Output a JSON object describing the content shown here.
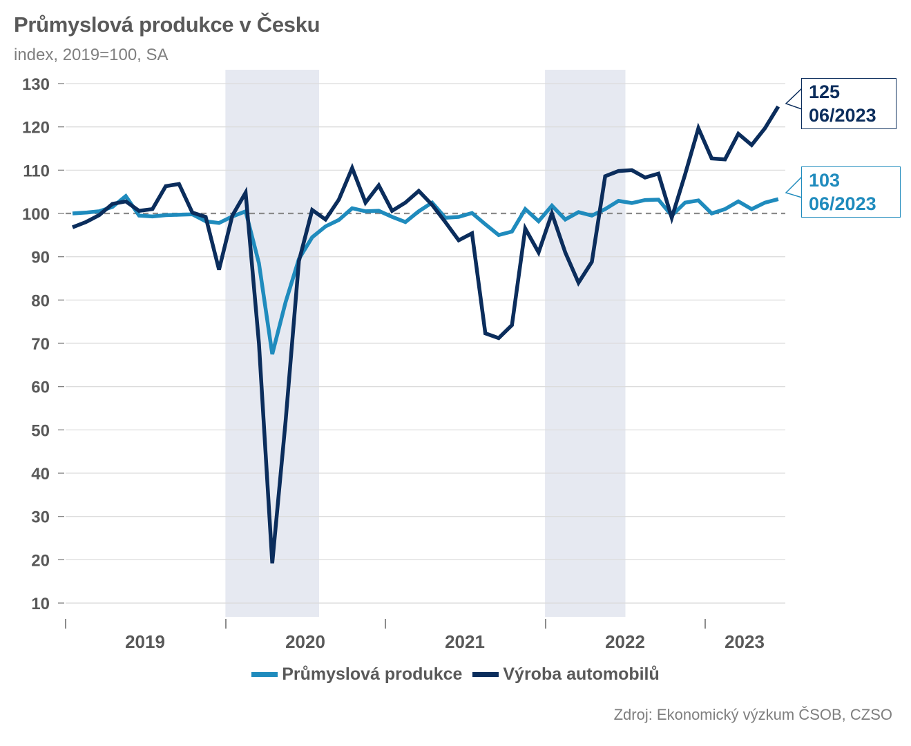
{
  "title": "Průmyslová produkce v Česku",
  "subtitle": "index, 2019=100, SA",
  "source": "Zdroj: Ekonomický výzkum ČSOB, CZSO",
  "callouts": [
    {
      "value": "125",
      "date": "06/2023",
      "color": "#0b2d5c"
    },
    {
      "value": "103",
      "date": "06/2023",
      "color": "#1f8bbd"
    }
  ],
  "legend": [
    {
      "label": "Průmyslová produkce",
      "color": "#1f8bbd"
    },
    {
      "label": "Výroba automobilů",
      "color": "#0b2d5c"
    }
  ],
  "chart_data": {
    "type": "line",
    "title": "Průmyslová produkce v Česku",
    "subtitle": "index, 2019=100, SA",
    "xlabel": "",
    "ylabel": "",
    "ylim": [
      10,
      130
    ],
    "yticks": [
      10,
      20,
      30,
      40,
      50,
      60,
      70,
      80,
      90,
      100,
      110,
      120,
      130
    ],
    "xticks": [
      "2019",
      "2020",
      "2021",
      "2022",
      "2023"
    ],
    "reference_line": 100,
    "shaded_periods": [
      {
        "from": "2020-01",
        "to": "2020-07"
      },
      {
        "from": "2022-01",
        "to": "2022-06"
      }
    ],
    "x_start": "2019-01",
    "x_end": "2023-06",
    "series": [
      {
        "name": "Průmyslová produkce",
        "color": "#1f8bbd",
        "values": [
          100.0,
          100.2,
          100.5,
          101.5,
          104.0,
          99.5,
          99.3,
          99.6,
          99.7,
          99.8,
          98.2,
          97.8,
          99.3,
          100.5,
          88.5,
          67.5,
          79.5,
          89.5,
          94.5,
          97.0,
          98.5,
          101.2,
          100.5,
          100.6,
          99.2,
          98.0,
          100.5,
          102.5,
          99.0,
          99.2,
          100.1,
          97.5,
          95.0,
          95.8,
          101.0,
          98.2,
          101.8,
          98.6,
          100.3,
          99.5,
          101.0,
          102.9,
          102.4,
          103.1,
          103.2,
          99.5,
          102.5,
          103.0,
          100.0,
          101.0,
          102.8,
          101.0,
          102.5,
          103.3
        ]
      },
      {
        "name": "Výroba automobilů",
        "color": "#0b2d5c",
        "values": [
          96.8,
          98.0,
          99.6,
          102.2,
          102.8,
          100.6,
          101.0,
          106.3,
          106.8,
          100.2,
          99.2,
          87.0,
          99.5,
          104.8,
          70.0,
          19.2,
          52.0,
          89.0,
          100.8,
          98.6,
          103.2,
          110.5,
          102.5,
          106.5,
          100.6,
          102.5,
          105.2,
          102.0,
          98.0,
          93.8,
          95.4,
          72.3,
          71.2,
          74.2,
          96.5,
          91.0,
          100.0,
          91.0,
          84.0,
          88.8,
          108.6,
          109.8,
          110.0,
          108.3,
          109.2,
          99.0,
          109.0,
          119.7,
          112.7,
          112.5,
          118.4,
          115.8,
          119.7,
          124.7
        ]
      }
    ]
  }
}
